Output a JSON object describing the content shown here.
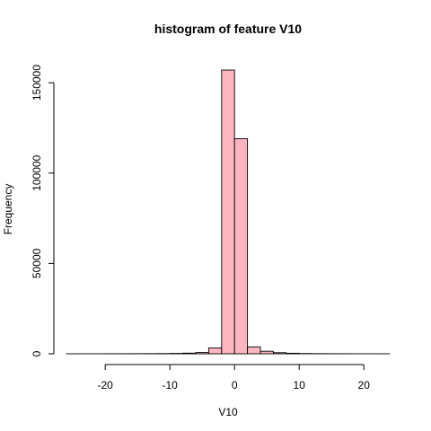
{
  "chart_data": {
    "type": "bar",
    "title": "histogram of feature V10",
    "xlabel": "V10",
    "ylabel": "Frequency",
    "bar_color": "#FFB6C1",
    "x_ticks": [
      -20,
      -10,
      0,
      10,
      20
    ],
    "y_ticks": [
      0,
      50000,
      100000,
      150000
    ],
    "xlim": [
      -26,
      24
    ],
    "ylim": [
      0,
      160000
    ],
    "bins": [
      {
        "x0": -26,
        "x1": -24,
        "count": 5
      },
      {
        "x0": -24,
        "x1": -22,
        "count": 10
      },
      {
        "x0": -22,
        "x1": -20,
        "count": 20
      },
      {
        "x0": -20,
        "x1": -18,
        "count": 30
      },
      {
        "x0": -18,
        "x1": -16,
        "count": 40
      },
      {
        "x0": -16,
        "x1": -14,
        "count": 60
      },
      {
        "x0": -14,
        "x1": -12,
        "count": 80
      },
      {
        "x0": -12,
        "x1": -10,
        "count": 120
      },
      {
        "x0": -10,
        "x1": -8,
        "count": 200
      },
      {
        "x0": -8,
        "x1": -6,
        "count": 350
      },
      {
        "x0": -6,
        "x1": -4,
        "count": 700
      },
      {
        "x0": -4,
        "x1": -2,
        "count": 3200
      },
      {
        "x0": -2,
        "x1": 0,
        "count": 157000
      },
      {
        "x0": 0,
        "x1": 2,
        "count": 119000
      },
      {
        "x0": 2,
        "x1": 4,
        "count": 3800
      },
      {
        "x0": 4,
        "x1": 6,
        "count": 1400
      },
      {
        "x0": 6,
        "x1": 8,
        "count": 600
      },
      {
        "x0": 8,
        "x1": 10,
        "count": 300
      },
      {
        "x0": 10,
        "x1": 12,
        "count": 150
      },
      {
        "x0": 12,
        "x1": 14,
        "count": 80
      },
      {
        "x0": 14,
        "x1": 16,
        "count": 50
      },
      {
        "x0": 16,
        "x1": 18,
        "count": 30
      },
      {
        "x0": 18,
        "x1": 20,
        "count": 20
      },
      {
        "x0": 20,
        "x1": 22,
        "count": 10
      },
      {
        "x0": 22,
        "x1": 24,
        "count": 5
      }
    ]
  }
}
